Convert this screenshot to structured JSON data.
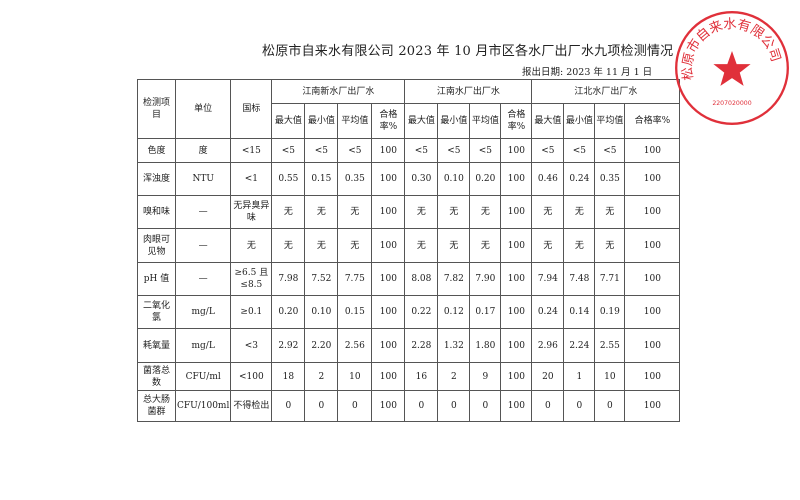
{
  "title": "松原市自来水有限公司 2023 年 10 月市区各水厂出厂水九项检测情况",
  "report_date": "报出日期: 2023 年 11 月 1 日",
  "seal": {
    "text": "松原市自来水有限公司",
    "code": "2207020000",
    "color": "#e0303a"
  },
  "headers": {
    "item": "检测项目",
    "unit": "单位",
    "standard": "国标",
    "plants": [
      "江南新水厂出厂水",
      "江南水厂出厂水",
      "江北水厂出厂水"
    ],
    "sub": [
      "最大值",
      "最小值",
      "平均值",
      "合格率%"
    ]
  },
  "rows": [
    {
      "item": "色度",
      "unit": "度",
      "standard": "<15",
      "values": [
        "<5",
        "<5",
        "<5",
        "100",
        "<5",
        "<5",
        "<5",
        "100",
        "<5",
        "<5",
        "<5",
        "100"
      ]
    },
    {
      "item": "浑浊度",
      "unit": "NTU",
      "standard": "<1",
      "values": [
        "0.55",
        "0.15",
        "0.35",
        "100",
        "0.30",
        "0.10",
        "0.20",
        "100",
        "0.46",
        "0.24",
        "0.35",
        "100"
      ]
    },
    {
      "item": "嗅和味",
      "unit": "—",
      "standard": "无异臭异味",
      "values": [
        "无",
        "无",
        "无",
        "100",
        "无",
        "无",
        "无",
        "100",
        "无",
        "无",
        "无",
        "100"
      ]
    },
    {
      "item": "肉眼可见物",
      "unit": "—",
      "standard": "无",
      "values": [
        "无",
        "无",
        "无",
        "100",
        "无",
        "无",
        "无",
        "100",
        "无",
        "无",
        "无",
        "100"
      ]
    },
    {
      "item": "pH 值",
      "unit": "—",
      "standard": "≥6.5 且≤8.5",
      "values": [
        "7.98",
        "7.52",
        "7.75",
        "100",
        "8.08",
        "7.82",
        "7.90",
        "100",
        "7.94",
        "7.48",
        "7.71",
        "100"
      ]
    },
    {
      "item": "二氧化氯",
      "unit": "mg/L",
      "standard": "≥0.1",
      "values": [
        "0.20",
        "0.10",
        "0.15",
        "100",
        "0.22",
        "0.12",
        "0.17",
        "100",
        "0.24",
        "0.14",
        "0.19",
        "100"
      ]
    },
    {
      "item": "耗氧量",
      "unit": "mg/L",
      "standard": "<3",
      "values": [
        "2.92",
        "2.20",
        "2.56",
        "100",
        "2.28",
        "1.32",
        "1.80",
        "100",
        "2.96",
        "2.24",
        "2.55",
        "100"
      ]
    },
    {
      "item": "菌落总数",
      "unit": "CFU/ml",
      "standard": "<100",
      "values": [
        "18",
        "2",
        "10",
        "100",
        "16",
        "2",
        "9",
        "100",
        "20",
        "1",
        "10",
        "100"
      ]
    },
    {
      "item": "总大肠菌群",
      "unit": "CFU/100ml",
      "standard": "不得检出",
      "values": [
        "0",
        "0",
        "0",
        "100",
        "0",
        "0",
        "0",
        "100",
        "0",
        "0",
        "0",
        "100"
      ]
    }
  ]
}
